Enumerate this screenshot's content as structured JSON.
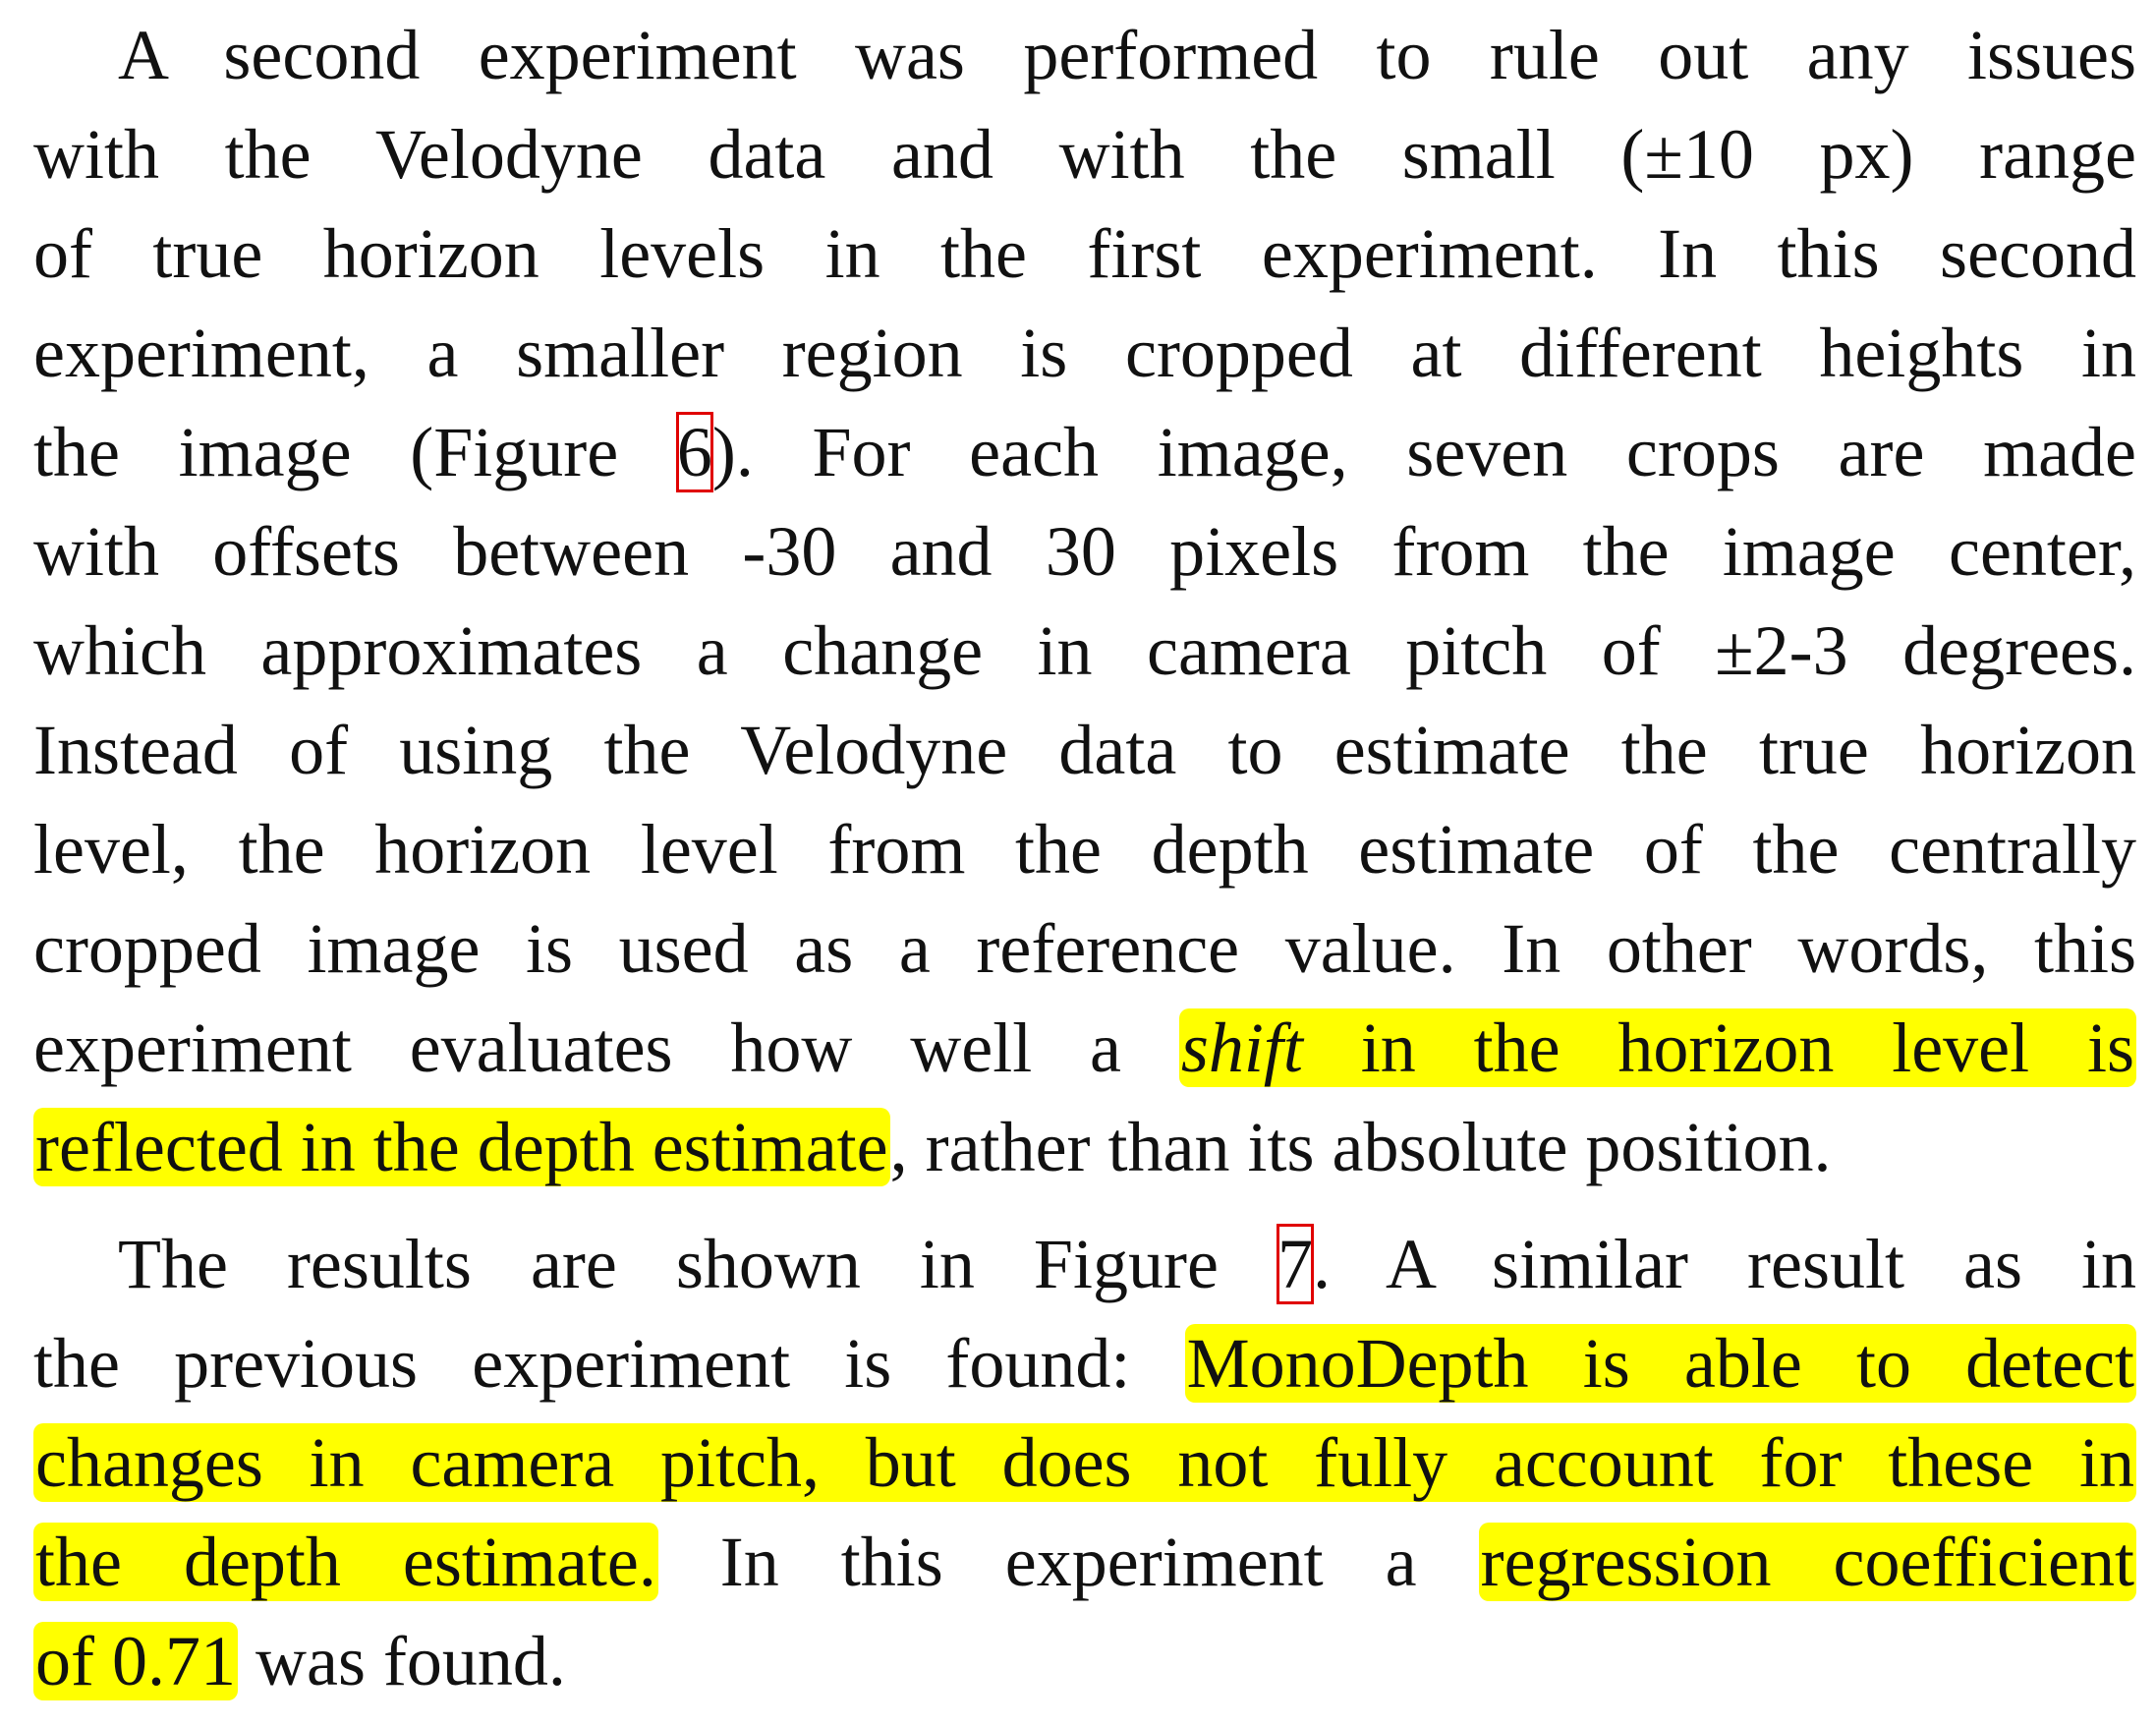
{
  "paragraph_1": {
    "line_1": "A second experiment was performed to rule out any issues",
    "line_2": "with the Velodyne data and with the small (±10 px) range",
    "line_3": "of true horizon levels in the first experiment. In this second",
    "line_4": "experiment, a smaller region is cropped at different heights in",
    "line_5_before": "the image (Figure ",
    "line_5_ref": "6",
    "line_5_after": "). For each image, seven crops are made",
    "line_6": "with offsets between -30 and 30 pixels from the image center,",
    "line_7": "which approximates a change in camera pitch of ±2-3 degrees.",
    "line_8": "Instead of using the Velodyne data to estimate the true horizon",
    "line_9": "level, the horizon level from the depth estimate of the centrally",
    "line_10": "cropped image is used as a reference value. In other words, this",
    "line_11_before": "experiment evaluates how well a ",
    "line_11_em": "shift",
    "line_11_hl": " in the horizon level is",
    "line_12_hl": "reflected in the depth estimate",
    "line_12_after": ", rather than its absolute position."
  },
  "paragraph_2": {
    "line_1_before": "The results are shown in Figure ",
    "line_1_ref": "7",
    "line_1_after": ". A similar result as in",
    "line_2_before": "the previous experiment is found: ",
    "line_2_hl": "MonoDepth is able to detect",
    "line_3_hl": "changes in camera pitch, but does not fully account for these in",
    "line_4_hl1": "the depth estimate.",
    "line_4_mid": " In this experiment a ",
    "line_4_hl2": "regression coefficient",
    "line_5_hl": "of 0.71",
    "line_5_after": " was found."
  },
  "colors": {
    "highlight": "#ffff00",
    "reference_box": "#e00000",
    "text": "#111111"
  }
}
